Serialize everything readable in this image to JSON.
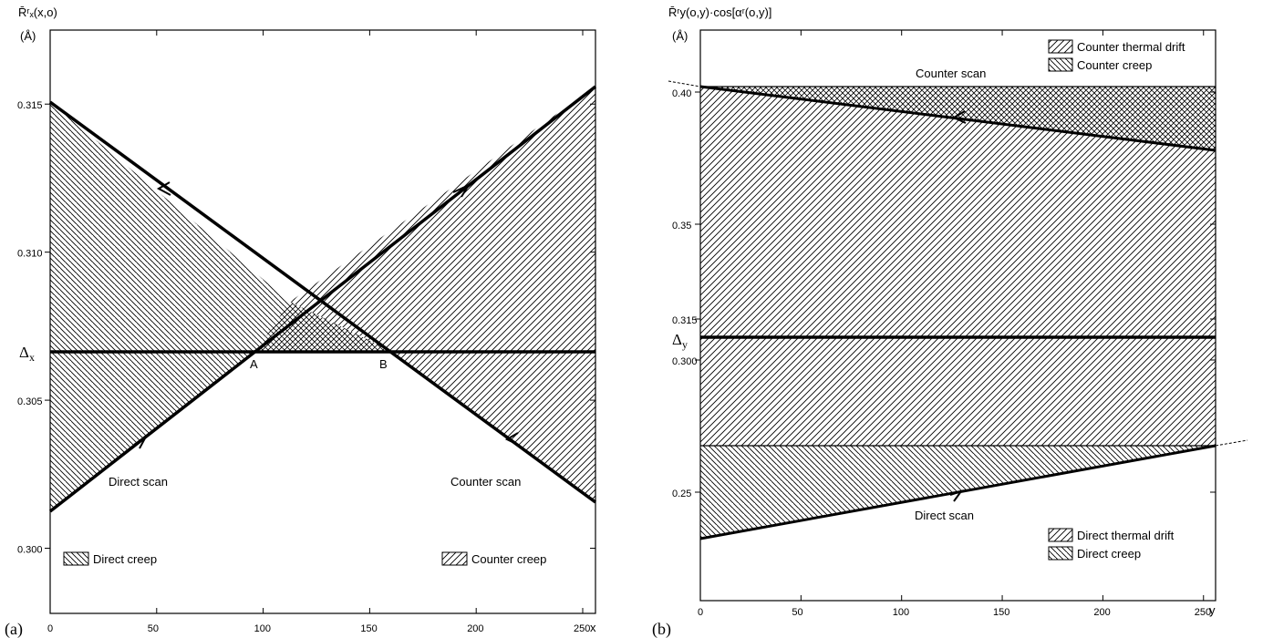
{
  "chart_data": [
    {
      "type": "line",
      "panel_label": "(a)",
      "ylabel": "R̄ʳₓ(x,o)",
      "yunit": "(Å)",
      "x_axis_end_label": "x",
      "xlim": [
        0,
        256
      ],
      "ylim": [
        0.2978,
        0.3175
      ],
      "x_ticks": [
        "0",
        "50",
        "100",
        "150",
        "200",
        "250"
      ],
      "y_ticks": [
        "0.300",
        "0.305",
        "0.310",
        "0.315"
      ],
      "series": [
        {
          "name": "Direct scan",
          "x": [
            0,
            256
          ],
          "y": [
            0.3006,
            0.3149
          ]
        },
        {
          "name": "Counter scan",
          "x": [
            0,
            256
          ],
          "y": [
            0.3145,
            0.301
          ]
        },
        {
          "name": "Δx",
          "x": [
            0,
            256
          ],
          "y": [
            0.3062,
            0.3062
          ]
        }
      ],
      "annotations": {
        "delta_label": "Δ",
        "delta_subscript": "x",
        "point_a": "A",
        "point_b": "B",
        "direct_scan_label": "Direct scan",
        "counter_scan_label": "Counter scan"
      },
      "legend": [
        {
          "label": "Direct creep",
          "position": "bottom-left"
        },
        {
          "label": "Counter creep",
          "position": "bottom-right"
        }
      ]
    },
    {
      "type": "line",
      "panel_label": "(b)",
      "ylabel": "R̄ʳy(o,y)·cos[αʳ(o,y)]",
      "yunit": "(Å)",
      "x_axis_end_label": "y",
      "xlim": [
        0,
        256
      ],
      "x_ticks": [
        "0",
        "50",
        "100",
        "150",
        "200",
        "250"
      ],
      "y_ticks": [
        "0.40",
        "0.35",
        "0.315",
        "0.300",
        "0.25"
      ],
      "y_scale": "broken",
      "series": [
        {
          "name": "Counter scan",
          "x": [
            0,
            256
          ],
          "y": [
            0.402,
            0.377
          ]
        },
        {
          "name": "Direct scan",
          "x": [
            0,
            256
          ],
          "y": [
            0.232,
            0.262
          ]
        },
        {
          "name": "Δy",
          "x": [
            0,
            256
          ],
          "y": [
            0.306,
            0.306
          ]
        }
      ],
      "annotations": {
        "delta_label": "Δ",
        "delta_subscript": "y",
        "counter_scan_label": "Counter scan",
        "direct_scan_label": "Direct scan"
      },
      "legend_top": [
        {
          "label": "Counter thermal drift"
        },
        {
          "label": "Counter creep"
        }
      ],
      "legend_bottom": [
        {
          "label": "Direct thermal drift"
        },
        {
          "label": "Direct creep"
        }
      ]
    }
  ]
}
